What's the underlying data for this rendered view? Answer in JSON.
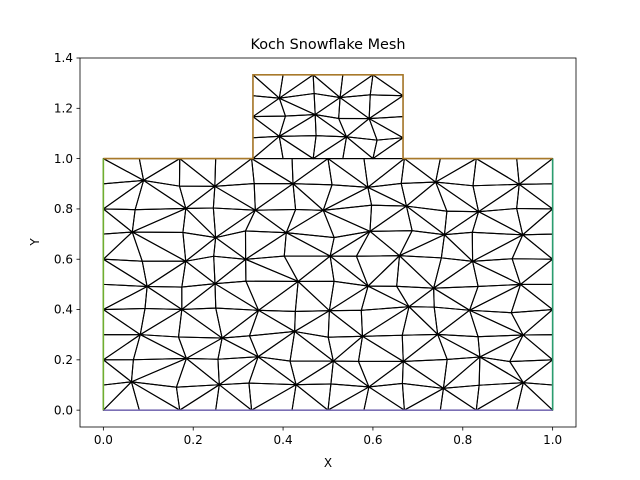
{
  "chart_data": {
    "type": "mesh",
    "title": "Koch Snowflake Mesh",
    "xlabel": "X",
    "ylabel": "Y",
    "xlim": [
      -0.052,
      1.052
    ],
    "ylim": [
      -0.067,
      1.4
    ],
    "x_ticks": [
      0.0,
      0.2,
      0.4,
      0.6,
      0.8,
      1.0
    ],
    "x_tick_labels": [
      "0.0",
      "0.2",
      "0.4",
      "0.6",
      "0.8",
      "1.0"
    ],
    "y_ticks": [
      0.0,
      0.2,
      0.4,
      0.6,
      0.8,
      1.0,
      1.2,
      1.4
    ],
    "y_tick_labels": [
      "0.0",
      "0.2",
      "0.4",
      "0.6",
      "0.8",
      "1.0",
      "1.2",
      "1.4"
    ],
    "grid": false,
    "boundaries": [
      {
        "color": "#7b6fb5",
        "points": [
          [
            0,
            0
          ],
          [
            1,
            0
          ]
        ]
      },
      {
        "color": "#2a9d6f",
        "points": [
          [
            1,
            0
          ],
          [
            1,
            1
          ]
        ]
      },
      {
        "color": "#a8792a",
        "points": [
          [
            1,
            1
          ],
          [
            0.667,
            1
          ],
          [
            0.667,
            1.333
          ],
          [
            0.333,
            1.333
          ],
          [
            0.333,
            1
          ],
          [
            0,
            1
          ]
        ]
      },
      {
        "color": "#6fae2f",
        "points": [
          [
            0,
            1
          ],
          [
            0,
            0
          ]
        ]
      }
    ],
    "mesh": {
      "color": "#000000",
      "main_columns": [
        0,
        0.08,
        0.17,
        0.25,
        0.33,
        0.42,
        0.5,
        0.58,
        0.67,
        0.75,
        0.83,
        0.92,
        1
      ],
      "main_rows": [
        0,
        0.1,
        0.2,
        0.3,
        0.4,
        0.5,
        0.6,
        0.7,
        0.8,
        0.9,
        1
      ],
      "top_columns": [
        0.333,
        0.4,
        0.467,
        0.533,
        0.6,
        0.667
      ],
      "top_rows": [
        1,
        1.083,
        1.167,
        1.25,
        1.333
      ]
    }
  }
}
